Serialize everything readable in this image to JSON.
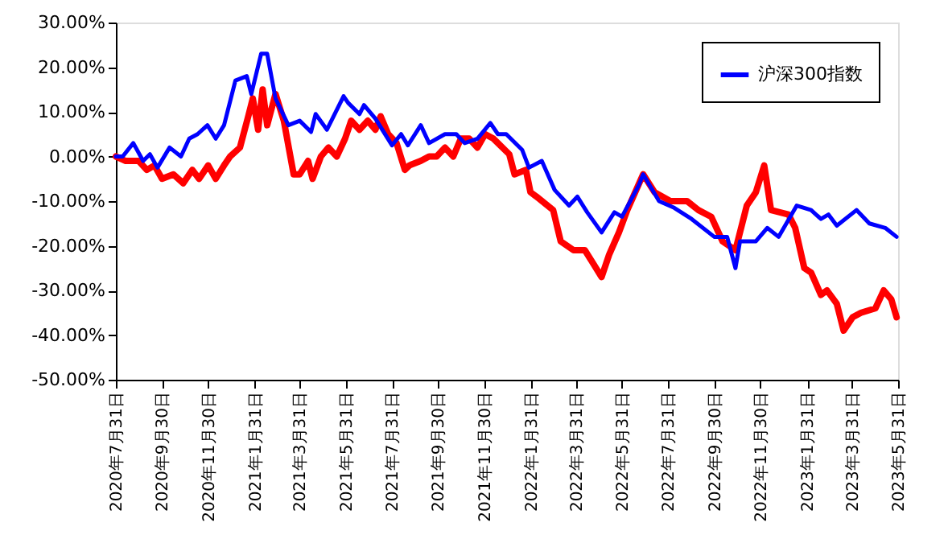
{
  "chart_data": {
    "type": "line",
    "xlim": [
      "2020-07-31",
      "2023-05-31"
    ],
    "ylim": [
      -50,
      30
    ],
    "xticks": [
      {
        "value": "2020-07-31",
        "label": "2020年7月31日"
      },
      {
        "value": "2020-09-30",
        "label": "2020年9月30日"
      },
      {
        "value": "2020-11-30",
        "label": "2020年11月30日"
      },
      {
        "value": "2021-01-31",
        "label": "2021年1月31日"
      },
      {
        "value": "2021-03-31",
        "label": "2021年3月31日"
      },
      {
        "value": "2021-05-31",
        "label": "2021年5月31日"
      },
      {
        "value": "2021-07-31",
        "label": "2021年7月31日"
      },
      {
        "value": "2021-09-30",
        "label": "2021年9月30日"
      },
      {
        "value": "2021-11-30",
        "label": "2021年11月30日"
      },
      {
        "value": "2022-01-31",
        "label": "2022年1月31日"
      },
      {
        "value": "2022-03-31",
        "label": "2022年3月31日"
      },
      {
        "value": "2022-05-31",
        "label": "2022年5月31日"
      },
      {
        "value": "2022-07-31",
        "label": "2022年7月31日"
      },
      {
        "value": "2022-09-30",
        "label": "2022年9月30日"
      },
      {
        "value": "2022-11-30",
        "label": "2022年11月30日"
      },
      {
        "value": "2023-01-31",
        "label": "2023年1月31日"
      },
      {
        "value": "2023-03-31",
        "label": "2023年3月31日"
      },
      {
        "value": "2023-05-31",
        "label": "2023年5月31日"
      }
    ],
    "yticks": [
      {
        "value": 30,
        "label": "30.00%"
      },
      {
        "value": 20,
        "label": "20.00%"
      },
      {
        "value": 10,
        "label": "10.00%"
      },
      {
        "value": 0,
        "label": "0.00%"
      },
      {
        "value": -10,
        "label": "-10.00%"
      },
      {
        "value": -20,
        "label": "-20.00%"
      },
      {
        "value": -30,
        "label": "-30.00%"
      },
      {
        "value": -40,
        "label": "-40.00%"
      },
      {
        "value": -50,
        "label": "-50.00%"
      }
    ],
    "grid": false,
    "legend": "top right",
    "marker": "none",
    "line_style": "solid",
    "series": [
      {
        "color": "#ff0000",
        "x": [
          "2020-07-31",
          "2020-08-13",
          "2020-08-30",
          "2020-09-10",
          "2020-09-20",
          "2020-09-30",
          "2020-10-15",
          "2020-10-28",
          "2020-11-09",
          "2020-11-18",
          "2020-11-30",
          "2020-12-10",
          "2020-12-21",
          "2020-12-29",
          "2021-01-11",
          "2021-01-22",
          "2021-01-28",
          "2021-02-04",
          "2021-02-10",
          "2021-02-16",
          "2021-02-27",
          "2021-03-10",
          "2021-03-23",
          "2021-03-31",
          "2021-04-11",
          "2021-04-17",
          "2021-04-28",
          "2021-05-08",
          "2021-05-19",
          "2021-05-30",
          "2021-06-07",
          "2021-06-18",
          "2021-06-29",
          "2021-07-09",
          "2021-07-16",
          "2021-07-26",
          "2021-08-06",
          "2021-08-17",
          "2021-08-23",
          "2021-09-07",
          "2021-09-18",
          "2021-09-28",
          "2021-10-09",
          "2021-10-20",
          "2021-10-30",
          "2021-11-10",
          "2021-11-21",
          "2021-12-01",
          "2021-12-12",
          "2021-12-18",
          "2022-01-02",
          "2022-01-09",
          "2022-01-24",
          "2022-01-30",
          "2022-02-07",
          "2022-03-01",
          "2022-03-11",
          "2022-03-28",
          "2022-04-12",
          "2022-04-23",
          "2022-05-04",
          "2022-05-14",
          "2022-05-27",
          "2022-06-07",
          "2022-06-28",
          "2022-07-13",
          "2022-08-03",
          "2022-08-25",
          "2022-09-09",
          "2022-09-26",
          "2022-10-11",
          "2022-10-28",
          "2022-11-12",
          "2022-11-24",
          "2022-12-05",
          "2022-12-14",
          "2023-01-06",
          "2023-01-15",
          "2023-01-27",
          "2023-02-05",
          "2023-02-18",
          "2023-02-26",
          "2023-03-11",
          "2023-03-20",
          "2023-04-01",
          "2023-04-12",
          "2023-05-01",
          "2023-05-12",
          "2023-05-22",
          "2023-05-29"
        ],
        "values": [
          0,
          -1,
          -1,
          -3,
          -2,
          -5,
          -4,
          -6,
          -3,
          -5,
          -2,
          -5,
          -2,
          0,
          2,
          9,
          13,
          6,
          15,
          7,
          14,
          8,
          -4,
          -4,
          -1,
          -5,
          0,
          2,
          0,
          4,
          8,
          6,
          8,
          6,
          9,
          5,
          3,
          -3,
          -2,
          -1,
          0,
          0,
          2,
          0,
          4,
          4,
          2,
          5,
          4,
          3,
          0.5,
          -4,
          -3,
          -8,
          -9,
          -12,
          -19,
          -21,
          -21,
          -24,
          -27,
          -22,
          -17,
          -12,
          -4,
          -8,
          -10,
          -10,
          -12,
          -13.5,
          -19,
          -21,
          -11,
          -8,
          -2,
          -12,
          -13,
          -16,
          -25,
          -26,
          -31,
          -30,
          -33,
          -39,
          -36,
          -35,
          -34,
          -30,
          -32,
          -36
        ]
      },
      {
        "name": "沪深300指数",
        "color": "#0000ff",
        "x": [
          "2020-07-31",
          "2020-08-09",
          "2020-08-23",
          "2020-09-05",
          "2020-09-14",
          "2020-09-24",
          "2020-10-10",
          "2020-10-25",
          "2020-11-05",
          "2020-11-16",
          "2020-11-29",
          "2020-12-10",
          "2020-12-21",
          "2021-01-05",
          "2021-01-20",
          "2021-01-26",
          "2021-02-08",
          "2021-02-16",
          "2021-02-27",
          "2021-03-16",
          "2021-03-31",
          "2021-04-15",
          "2021-04-21",
          "2021-05-06",
          "2021-05-28",
          "2021-06-03",
          "2021-06-18",
          "2021-06-24",
          "2021-07-09",
          "2021-07-31",
          "2021-08-12",
          "2021-08-21",
          "2021-09-07",
          "2021-09-18",
          "2021-10-09",
          "2021-10-24",
          "2021-11-04",
          "2021-11-21",
          "2021-12-08",
          "2021-12-18",
          "2021-12-29",
          "2022-01-19",
          "2022-01-28",
          "2022-02-14",
          "2022-03-03",
          "2022-03-22",
          "2022-04-02",
          "2022-04-15",
          "2022-05-04",
          "2022-05-21",
          "2022-05-31",
          "2022-06-22",
          "2022-06-28",
          "2022-07-19",
          "2022-08-08",
          "2022-08-31",
          "2022-09-30",
          "2022-10-17",
          "2022-10-28",
          "2022-11-03",
          "2022-11-24",
          "2022-12-09",
          "2022-12-24",
          "2023-01-17",
          "2023-02-05",
          "2023-02-18",
          "2023-02-28",
          "2023-03-11",
          "2023-04-06",
          "2023-04-23",
          "2023-05-14",
          "2023-05-29"
        ],
        "values": [
          0,
          0,
          3,
          -1,
          0.5,
          -2.5,
          2,
          0,
          4,
          5,
          7,
          4,
          7,
          17,
          18,
          14,
          23,
          23,
          13,
          7,
          8,
          5.5,
          9.5,
          6,
          13.5,
          12,
          9.5,
          11.5,
          8.5,
          2.5,
          5,
          2.5,
          7,
          3,
          5,
          5,
          3,
          4,
          7.5,
          5,
          5,
          1.5,
          -2.5,
          -1,
          -7.5,
          -11,
          -9,
          -12.5,
          -17,
          -12.5,
          -13.5,
          -6.5,
          -4,
          -10,
          -11.5,
          -14,
          -18,
          -18,
          -25,
          -19,
          -19,
          -16,
          -18,
          -11,
          -12,
          -14,
          -13,
          -15.5,
          -12,
          -15,
          -16,
          -18
        ]
      }
    ]
  }
}
